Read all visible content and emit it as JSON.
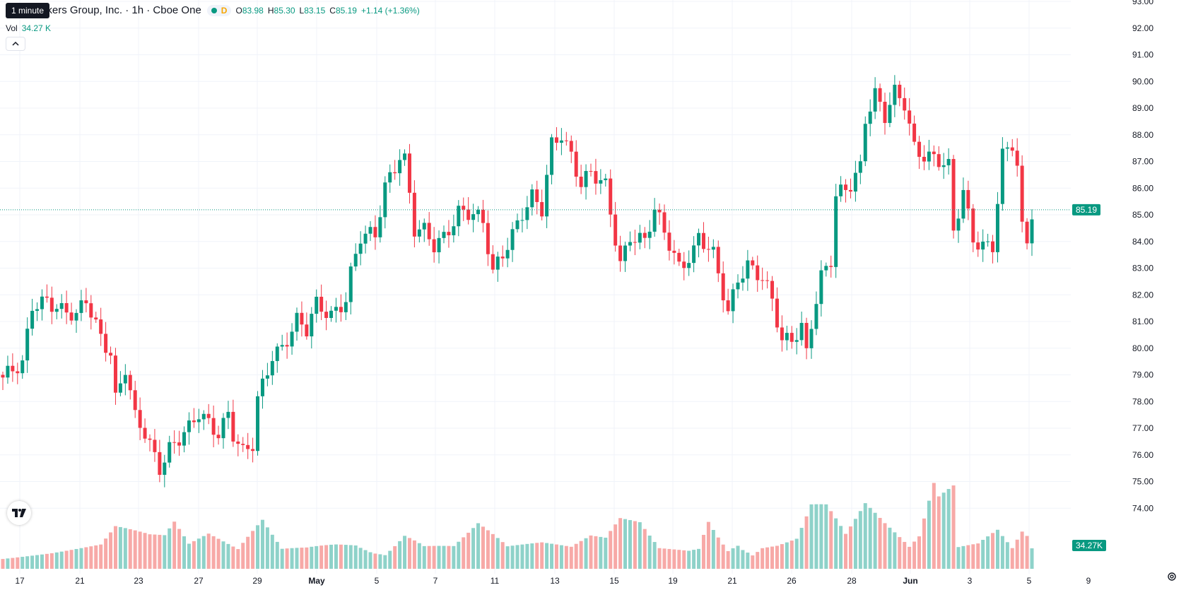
{
  "legend": {
    "tooltip": "1 minute",
    "title": "ctive Brokers Group, Inc. · 1h · Cboe One",
    "d_mark": "D",
    "o_label": "O",
    "o_value": "83.98",
    "h_label": "H",
    "h_value": "85.30",
    "l_label": "L",
    "l_value": "83.15",
    "c_label": "C",
    "c_value": "85.19",
    "change": "+1.14 (+1.36%)"
  },
  "volume": {
    "label": "Vol",
    "value": "34.27 K"
  },
  "icons": {
    "logo": "tradingview-logo-icon",
    "settings": "gear-icon",
    "collapse": "chevron-up-icon"
  },
  "colors": {
    "up": "#089981",
    "down": "#f23645",
    "up_volume": "#8ed2c9",
    "down_volume": "#f7a9a7",
    "last_price_label": "#089981"
  },
  "chart_data": {
    "type": "candlestick",
    "symbol": "ctive Brokers Group, Inc.",
    "interval": "1h",
    "exchange": "Cboe One",
    "ylim": [
      74,
      93
    ],
    "y_ticks": [
      "93.00",
      "92.00",
      "91.00",
      "90.00",
      "89.00",
      "88.00",
      "87.00",
      "86.00",
      "85.00",
      "84.00",
      "83.00",
      "82.00",
      "81.00",
      "80.00",
      "79.00",
      "78.00",
      "77.00",
      "76.00",
      "75.00",
      "74.00"
    ],
    "x_ticks": [
      "17",
      "21",
      "23",
      "27",
      "29",
      "May",
      "5",
      "7",
      "11",
      "13",
      "15",
      "19",
      "21",
      "26",
      "28",
      "Jun",
      "3",
      "5",
      "9"
    ],
    "last_price": 85.19,
    "last_price_label": "85.19",
    "volume_label": "34.27K",
    "close_path": [
      [
        0,
        78.9
      ],
      [
        4,
        79.3
      ],
      [
        6,
        81.6
      ],
      [
        9,
        81.9
      ],
      [
        12,
        81.4
      ],
      [
        15,
        81.1
      ],
      [
        17,
        81.8
      ],
      [
        20,
        80.5
      ],
      [
        22,
        79.9
      ],
      [
        23,
        78.1
      ],
      [
        25,
        79.2
      ],
      [
        27,
        77.3
      ],
      [
        29,
        76.8
      ],
      [
        32,
        75.6
      ],
      [
        34,
        76.3
      ],
      [
        38,
        76.9
      ],
      [
        40,
        77.5
      ],
      [
        44,
        76.9
      ],
      [
        46,
        77.6
      ],
      [
        47,
        76.8
      ],
      [
        49,
        76.0
      ],
      [
        51,
        76.3
      ],
      [
        52,
        78.0
      ],
      [
        55,
        79.8
      ],
      [
        57,
        80.1
      ],
      [
        60,
        81.0
      ],
      [
        62,
        80.6
      ],
      [
        64,
        81.6
      ],
      [
        67,
        81.3
      ],
      [
        70,
        81.9
      ],
      [
        71,
        82.8
      ],
      [
        73,
        84.1
      ],
      [
        76,
        84.2
      ],
      [
        78,
        86.1
      ],
      [
        81,
        87.3
      ],
      [
        82,
        87.1
      ],
      [
        84,
        84.4
      ],
      [
        86,
        84.3
      ],
      [
        88,
        83.8
      ],
      [
        90,
        84.2
      ],
      [
        93,
        85.2
      ],
      [
        96,
        85.0
      ],
      [
        98,
        84.6
      ],
      [
        100,
        82.8
      ],
      [
        103,
        84.0
      ],
      [
        106,
        85.1
      ],
      [
        108,
        85.6
      ],
      [
        110,
        85.1
      ],
      [
        112,
        87.6
      ],
      [
        114,
        88.1
      ],
      [
        116,
        87.3
      ],
      [
        118,
        86.2
      ],
      [
        120,
        86.5
      ],
      [
        123,
        86.0
      ],
      [
        126,
        83.2
      ],
      [
        128,
        84.3
      ],
      [
        131,
        84.0
      ],
      [
        133,
        85.1
      ],
      [
        135,
        84.3
      ],
      [
        138,
        83.1
      ],
      [
        141,
        83.7
      ],
      [
        142,
        84.2
      ],
      [
        145,
        83.4
      ],
      [
        147,
        82.0
      ],
      [
        148,
        81.3
      ],
      [
        150,
        82.7
      ],
      [
        152,
        83.2
      ],
      [
        155,
        82.6
      ],
      [
        157,
        81.7
      ],
      [
        159,
        80.2
      ],
      [
        161,
        80.4
      ],
      [
        163,
        80.9
      ],
      [
        164,
        79.9
      ],
      [
        165,
        81.0
      ],
      [
        167,
        82.6
      ],
      [
        169,
        83.2
      ],
      [
        170,
        85.6
      ],
      [
        173,
        86.2
      ],
      [
        175,
        86.9
      ],
      [
        176,
        88.7
      ],
      [
        178,
        89.5
      ],
      [
        180,
        88.6
      ],
      [
        182,
        89.5
      ],
      [
        184,
        89.2
      ],
      [
        186,
        87.6
      ],
      [
        188,
        87.3
      ],
      [
        190,
        87.1
      ],
      [
        193,
        86.7
      ],
      [
        194,
        84.3
      ],
      [
        196,
        85.9
      ],
      [
        198,
        84.2
      ],
      [
        200,
        83.9
      ],
      [
        202,
        83.8
      ],
      [
        204,
        87.1
      ],
      [
        206,
        87.6
      ],
      [
        207,
        86.8
      ],
      [
        208,
        84.5
      ],
      [
        209,
        84.1
      ],
      [
        210,
        85.2
      ]
    ],
    "volume_path": [
      [
        0,
        11
      ],
      [
        10,
        13
      ],
      [
        20,
        17
      ],
      [
        23,
        30
      ],
      [
        30,
        22
      ],
      [
        33,
        21
      ],
      [
        35,
        30
      ],
      [
        38,
        15
      ],
      [
        42,
        22
      ],
      [
        48,
        12
      ],
      [
        53,
        35
      ],
      [
        57,
        14
      ],
      [
        62,
        17
      ],
      [
        68,
        24
      ],
      [
        72,
        27
      ],
      [
        78,
        15
      ],
      [
        82,
        35
      ],
      [
        86,
        20
      ],
      [
        92,
        17
      ],
      [
        97,
        33
      ],
      [
        103,
        14
      ],
      [
        110,
        16
      ],
      [
        116,
        13
      ],
      [
        120,
        21
      ],
      [
        123,
        20
      ],
      [
        126,
        35
      ],
      [
        130,
        34
      ],
      [
        134,
        15
      ],
      [
        140,
        15
      ],
      [
        142,
        18
      ],
      [
        144,
        50
      ],
      [
        148,
        20
      ],
      [
        150,
        30
      ],
      [
        153,
        15
      ],
      [
        155,
        23
      ],
      [
        158,
        23
      ],
      [
        162,
        27
      ],
      [
        165,
        56
      ],
      [
        168,
        52
      ],
      [
        172,
        25
      ],
      [
        176,
        46
      ],
      [
        180,
        30
      ],
      [
        185,
        13
      ],
      [
        187,
        20
      ],
      [
        190,
        56
      ],
      [
        191,
        47
      ],
      [
        194,
        55
      ],
      [
        195,
        13
      ],
      [
        199,
        16
      ],
      [
        203,
        27
      ],
      [
        206,
        14
      ],
      [
        208,
        28
      ],
      [
        209,
        25
      ],
      [
        210,
        15
      ]
    ]
  }
}
